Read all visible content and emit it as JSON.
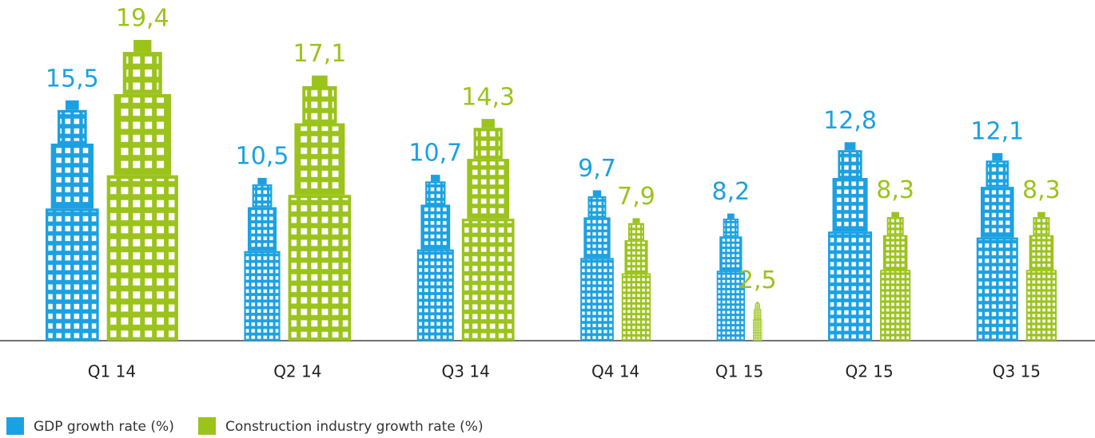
{
  "chart_data": {
    "type": "bar",
    "categories": [
      "Q1 14",
      "Q2 14",
      "Q3 14",
      "Q4 14",
      "Q1 15",
      "Q2 15",
      "Q3 15"
    ],
    "series": [
      {
        "name": "GDP growth rate (%)",
        "color": "#1ba1e2",
        "values": [
          15.5,
          10.5,
          10.7,
          9.7,
          8.2,
          12.8,
          12.1
        ],
        "value_labels": [
          "15,5",
          "10,5",
          "10,7",
          "9,7",
          "8,2",
          "12,8",
          "12,1"
        ]
      },
      {
        "name": "Construction industry growth rate (%)",
        "color": "#9bc31c",
        "values": [
          19.4,
          17.1,
          14.3,
          7.9,
          2.5,
          8.3,
          8.3
        ],
        "value_labels": [
          "19,4",
          "17,1",
          "14,3",
          "7,9",
          "2,5",
          "8,3",
          "8,3"
        ]
      }
    ]
  }
}
